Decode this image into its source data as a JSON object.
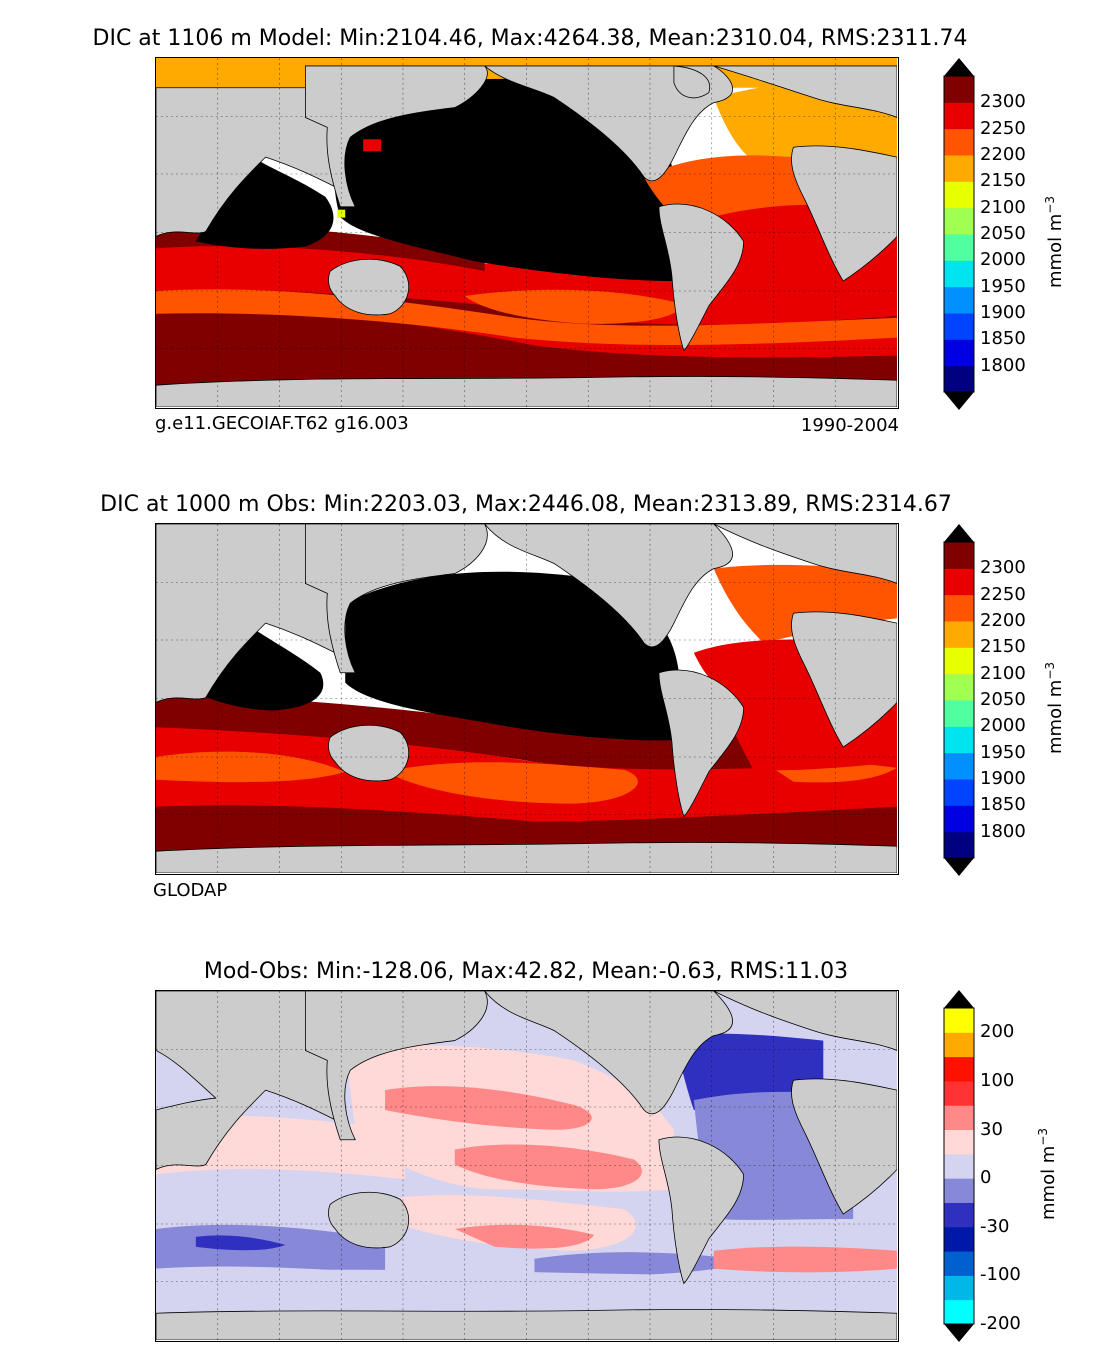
{
  "panels": [
    {
      "id": "model",
      "title": "DIC at 1106 m Model: Min:2104.46, Max:4264.38, Mean:2310.04, RMS:2311.74",
      "subtitle_left": "g.e11.GECOIAF.T62 g16.003",
      "subtitle_right": "1990-2004",
      "colorbar": {
        "unit": "mmol m",
        "unit_exp": "−3",
        "ticks": [
          "2300",
          "2250",
          "2200",
          "2150",
          "2100",
          "2050",
          "2000",
          "1950",
          "1900",
          "1850",
          "1800"
        ],
        "colors_low_to_high": [
          "#000080",
          "#0000e0",
          "#0044ff",
          "#0090ff",
          "#00e4f0",
          "#50ffa0",
          "#a0ff50",
          "#e8ff00",
          "#ffaa00",
          "#ff5500",
          "#e80000",
          "#800000"
        ],
        "over_color": "#000000",
        "under_color": "#000000"
      }
    },
    {
      "id": "obs",
      "title": "DIC at 1000 m Obs: Min:2203.03, Max:2446.08, Mean:2313.89, RMS:2314.67",
      "subtitle_left": "GLODAP",
      "subtitle_right": "",
      "colorbar": {
        "unit": "mmol m",
        "unit_exp": "−3",
        "ticks": [
          "2300",
          "2250",
          "2200",
          "2150",
          "2100",
          "2050",
          "2000",
          "1950",
          "1900",
          "1850",
          "1800"
        ],
        "colors_low_to_high": [
          "#000080",
          "#0000e0",
          "#0044ff",
          "#0090ff",
          "#00e4f0",
          "#50ffa0",
          "#a0ff50",
          "#e8ff00",
          "#ffaa00",
          "#ff5500",
          "#e80000",
          "#800000"
        ],
        "over_color": "#000000",
        "under_color": "#000000"
      }
    },
    {
      "id": "diff",
      "title": "Mod-Obs: Min:-128.06, Max:42.82, Mean:-0.63, RMS:11.03",
      "subtitle_left": "",
      "subtitle_right": "",
      "colorbar": {
        "unit": "mmol m",
        "unit_exp": "−3",
        "ticks": [
          "200",
          "100",
          "30",
          "0",
          "-30",
          "-100",
          "-200"
        ],
        "colors_low_to_high": [
          "#00ffff",
          "#00b8e8",
          "#0060d0",
          "#0018a8",
          "#3030c0",
          "#8888d8",
          "#d4d4f0",
          "#ffd8d8",
          "#ff8888",
          "#ff3333",
          "#ff1100",
          "#ffaa00",
          "#ffff00"
        ],
        "over_color": "#000000",
        "under_color": "#000000"
      }
    }
  ],
  "map_colors": {
    "land": "#cccccc",
    "missing": "#ffffff"
  }
}
